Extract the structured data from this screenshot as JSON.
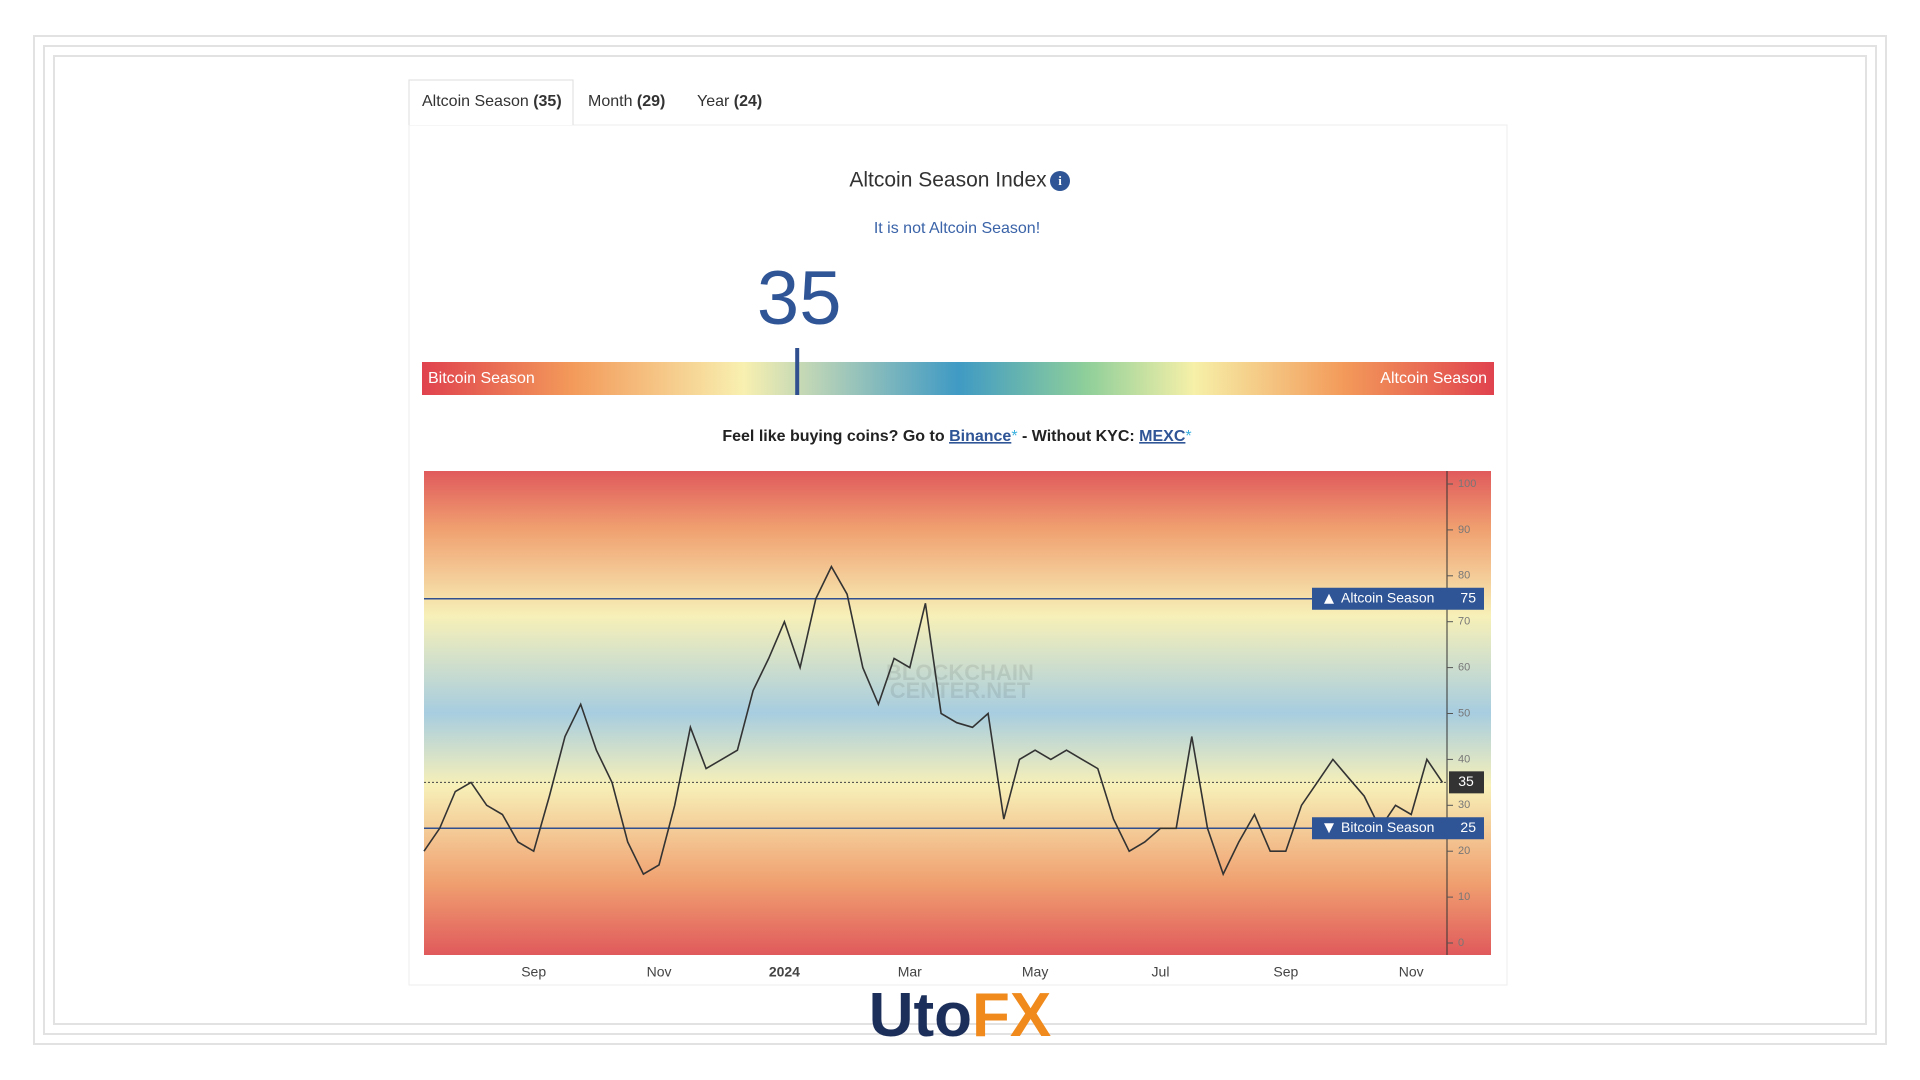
{
  "tabs": [
    {
      "label": "Altcoin Season",
      "count": "(35)"
    },
    {
      "label": "Month",
      "count": "(29)"
    },
    {
      "label": "Year",
      "count": "(24)"
    }
  ],
  "gauge": {
    "title": "Altcoin Season Index",
    "status": "It is not Altcoin Season!",
    "value": 35,
    "lim": [
      0,
      100
    ],
    "left_label": "Bitcoin Season",
    "right_label": "Altcoin Season"
  },
  "promo": {
    "text": "Feel like buying coins? Go to",
    "link1": "Binance",
    "asterisk": "*",
    "middle": "- Without KYC:",
    "link2": "MEXC"
  },
  "chart_data": {
    "type": "line",
    "color": "#333333",
    "categories": [
      null,
      null,
      null,
      null,
      null,
      null,
      null,
      "Sep",
      null,
      null,
      null,
      null,
      null,
      null,
      null,
      "Nov",
      null,
      null,
      null,
      null,
      null,
      null,
      null,
      "2024",
      null,
      null,
      null,
      null,
      null,
      null,
      null,
      "Mar",
      null,
      null,
      null,
      null,
      null,
      null,
      null,
      "May",
      null,
      null,
      null,
      null,
      null,
      null,
      null,
      "Jul",
      null,
      null,
      null,
      null,
      null,
      null,
      null,
      "Sep",
      null,
      null,
      null,
      null,
      null,
      null,
      null,
      "Nov",
      null,
      null
    ],
    "values": [
      20,
      25,
      33,
      35,
      30,
      28,
      22,
      20,
      32,
      45,
      52,
      42,
      35,
      22,
      15,
      17,
      30,
      47,
      38,
      40,
      42,
      55,
      62,
      70,
      60,
      75,
      82,
      76,
      60,
      52,
      62,
      60,
      74,
      50,
      48,
      47,
      50,
      27,
      40,
      42,
      40,
      42,
      40,
      38,
      27,
      20,
      22,
      25,
      25,
      45,
      25,
      15,
      22,
      28,
      20,
      20,
      30,
      35,
      40,
      36,
      32,
      25,
      30,
      28,
      40,
      35
    ],
    "ylim": [
      0,
      100
    ],
    "yticks": [
      0,
      10,
      20,
      30,
      40,
      50,
      60,
      70,
      80,
      90,
      100
    ],
    "reference_lines": [
      {
        "label": "Altcoin Season",
        "value": 75
      },
      {
        "label": "Bitcoin Season",
        "value": 25
      }
    ]
  },
  "watermark": [
    "BLOCKCHAIN",
    "CENTER.NET"
  ],
  "logo": [
    "Uto",
    "FX"
  ]
}
